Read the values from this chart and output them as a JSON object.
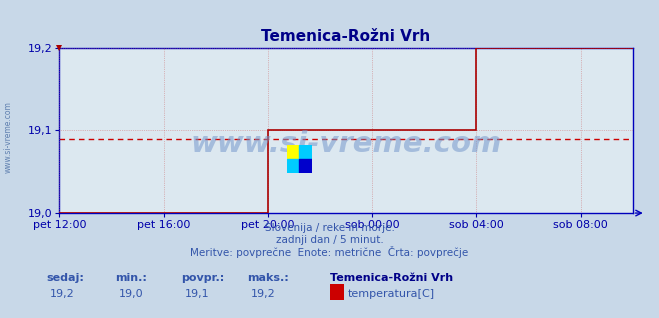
{
  "title": "Temenica-Rožni Vrh",
  "bg_color": "#c8d8e8",
  "plot_bg_color": "#dce8f0",
  "grid_color": "#cc6666",
  "line_color": "#aa0000",
  "avg_line_color": "#cc0000",
  "x_axis_color": "#0000bb",
  "y_axis_color": "#0000bb",
  "tick_color": "#0000aa",
  "title_color": "#000088",
  "label_color": "#3355aa",
  "watermark_color": "#7799cc",
  "left_label_color": "#5577aa",
  "ylim": [
    19.0,
    19.2
  ],
  "yticks": [
    19.0,
    19.1,
    19.2
  ],
  "ytick_labels": [
    "19,0",
    "19,1",
    "19,2"
  ],
  "xtick_labels": [
    "pet 12:00",
    "pet 16:00",
    "pet 20:00",
    "sob 00:00",
    "sob 04:00",
    "sob 08:00"
  ],
  "xtick_positions": [
    0,
    4,
    8,
    12,
    16,
    20
  ],
  "xlim": [
    0,
    22
  ],
  "avg_value": 19.09,
  "subtitle1": "Slovenija / reke in morje.",
  "subtitle2": "zadnji dan / 5 minut.",
  "subtitle3": "Meritve: povprečne  Enote: metrične  Črta: povprečje",
  "footer_label1": "sedaj:",
  "footer_label2": "min.:",
  "footer_label3": "povpr.:",
  "footer_label4": "maks.:",
  "footer_val1": "19,2",
  "footer_val2": "19,0",
  "footer_val3": "19,1",
  "footer_val4": "19,2",
  "footer_series": "Temenica-Rožni Vrh",
  "footer_legend": "temperatura[C]",
  "legend_color": "#cc0000",
  "left_label": "www.si-vreme.com",
  "figsize": [
    6.59,
    3.18
  ],
  "dpi": 100,
  "step_x1": 8.0,
  "step_y1": 19.1,
  "step_x2": 16.0,
  "step_y2": 19.2
}
